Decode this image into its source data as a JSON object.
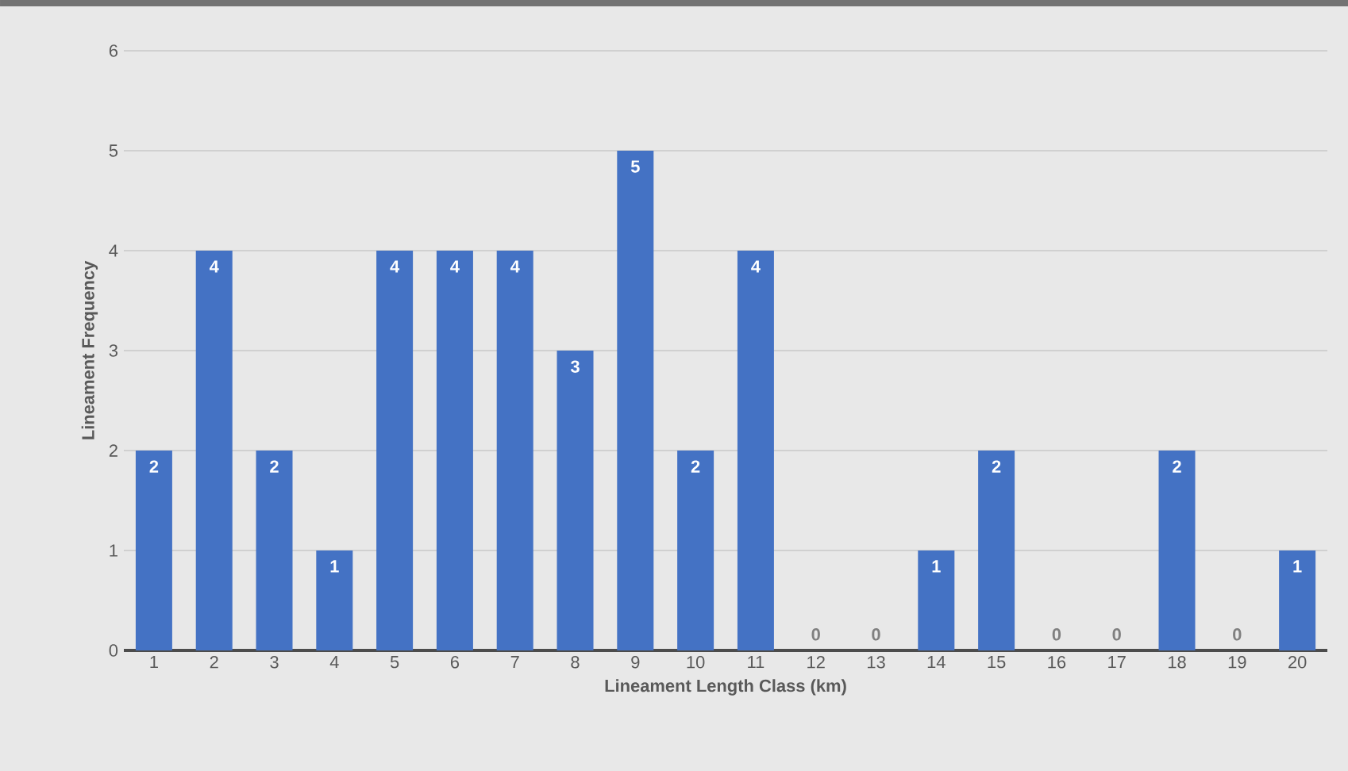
{
  "chart_data": {
    "type": "bar",
    "xlabel": "Lineament Length  Class (km)",
    "ylabel": "Lineament Frequency",
    "categories": [
      "1",
      "2",
      "3",
      "4",
      "5",
      "6",
      "7",
      "8",
      "9",
      "10",
      "11",
      "12",
      "13",
      "14",
      "15",
      "16",
      "17",
      "18",
      "19",
      "20"
    ],
    "values": [
      2,
      4,
      2,
      1,
      4,
      4,
      4,
      3,
      5,
      2,
      4,
      0,
      0,
      1,
      2,
      0,
      0,
      2,
      0,
      1
    ],
    "color": "#4472c4",
    "ylim": [
      0,
      6
    ],
    "yticks": [
      0,
      1,
      2,
      3,
      4,
      5,
      6
    ],
    "grid": "y",
    "data_labels": true
  }
}
